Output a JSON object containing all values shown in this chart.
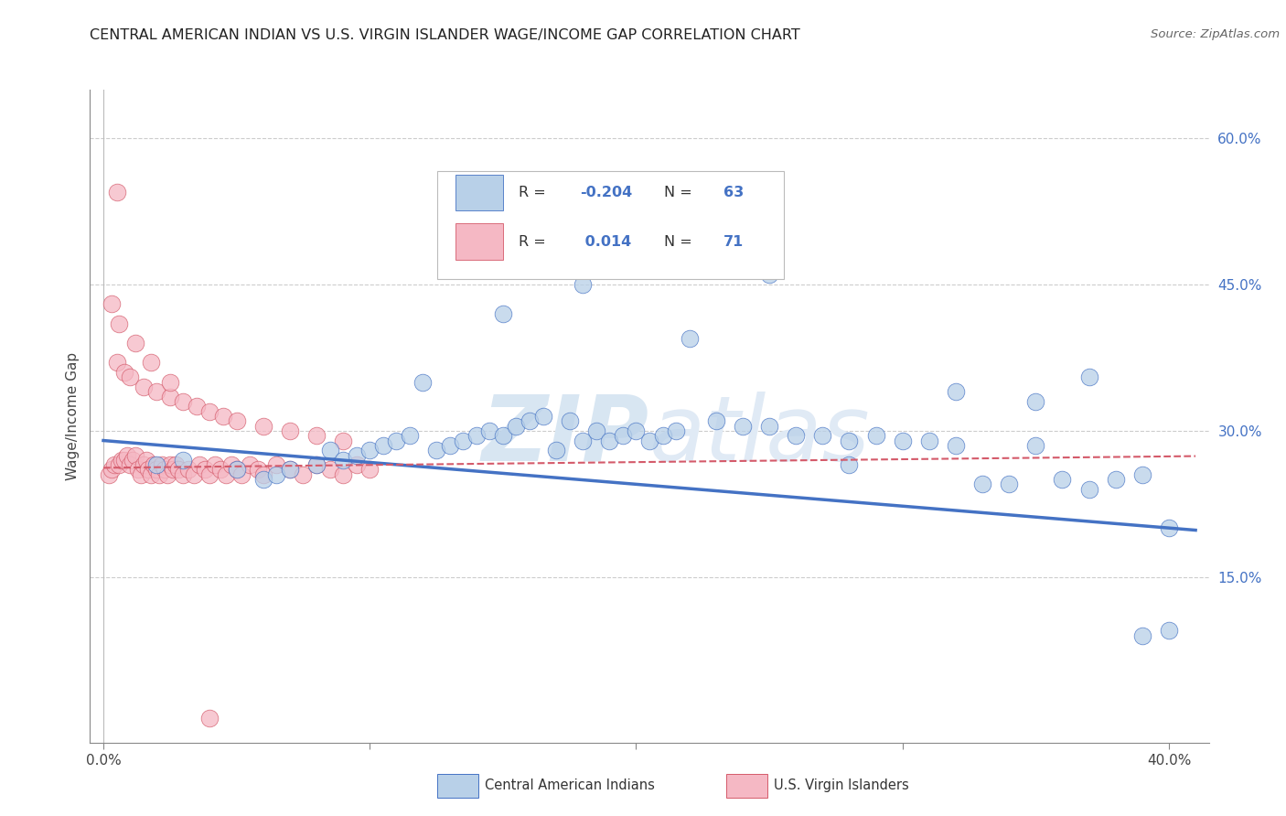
{
  "title": "CENTRAL AMERICAN INDIAN VS U.S. VIRGIN ISLANDER WAGE/INCOME GAP CORRELATION CHART",
  "source": "Source: ZipAtlas.com",
  "ylabel": "Wage/Income Gap",
  "xlim": [
    -0.005,
    0.415
  ],
  "ylim": [
    -0.02,
    0.65
  ],
  "x_ticks": [
    0.0,
    0.1,
    0.2,
    0.3,
    0.4
  ],
  "x_tick_labels": [
    "0.0%",
    "",
    "",
    "",
    "40.0%"
  ],
  "y_ticks_right": [
    0.15,
    0.3,
    0.45,
    0.6
  ],
  "y_tick_labels_right": [
    "15.0%",
    "30.0%",
    "45.0%",
    "60.0%"
  ],
  "color_blue": "#b8d0e8",
  "color_pink": "#f5b8c4",
  "line_color_blue": "#4472c4",
  "line_color_pink": "#d45a6a",
  "watermark": "ZIPatlas",
  "blue_scatter_x": [
    0.02,
    0.03,
    0.05,
    0.06,
    0.065,
    0.07,
    0.08,
    0.085,
    0.09,
    0.095,
    0.1,
    0.105,
    0.11,
    0.115,
    0.12,
    0.125,
    0.13,
    0.135,
    0.14,
    0.145,
    0.15,
    0.155,
    0.16,
    0.165,
    0.17,
    0.175,
    0.18,
    0.185,
    0.19,
    0.195,
    0.2,
    0.205,
    0.21,
    0.215,
    0.22,
    0.23,
    0.24,
    0.25,
    0.26,
    0.27,
    0.28,
    0.29,
    0.3,
    0.31,
    0.32,
    0.33,
    0.34,
    0.35,
    0.36,
    0.37,
    0.38,
    0.39,
    0.4,
    0.35,
    0.37,
    0.39,
    0.4,
    0.21,
    0.15,
    0.28,
    0.25,
    0.18,
    0.32
  ],
  "blue_scatter_y": [
    0.265,
    0.27,
    0.26,
    0.25,
    0.255,
    0.26,
    0.265,
    0.28,
    0.27,
    0.275,
    0.28,
    0.285,
    0.29,
    0.295,
    0.35,
    0.28,
    0.285,
    0.29,
    0.295,
    0.3,
    0.295,
    0.305,
    0.31,
    0.315,
    0.28,
    0.31,
    0.29,
    0.3,
    0.29,
    0.295,
    0.3,
    0.29,
    0.295,
    0.3,
    0.395,
    0.31,
    0.305,
    0.305,
    0.295,
    0.295,
    0.29,
    0.295,
    0.29,
    0.29,
    0.285,
    0.245,
    0.245,
    0.285,
    0.25,
    0.24,
    0.25,
    0.255,
    0.2,
    0.33,
    0.355,
    0.09,
    0.095,
    0.48,
    0.42,
    0.265,
    0.46,
    0.45,
    0.34
  ],
  "pink_scatter_x": [
    0.002,
    0.003,
    0.004,
    0.005,
    0.006,
    0.007,
    0.008,
    0.009,
    0.01,
    0.011,
    0.012,
    0.013,
    0.014,
    0.015,
    0.016,
    0.017,
    0.018,
    0.019,
    0.02,
    0.021,
    0.022,
    0.023,
    0.024,
    0.025,
    0.026,
    0.027,
    0.028,
    0.03,
    0.032,
    0.034,
    0.036,
    0.038,
    0.04,
    0.042,
    0.044,
    0.046,
    0.048,
    0.05,
    0.052,
    0.055,
    0.058,
    0.06,
    0.065,
    0.07,
    0.075,
    0.08,
    0.085,
    0.09,
    0.095,
    0.1,
    0.005,
    0.008,
    0.01,
    0.015,
    0.02,
    0.025,
    0.03,
    0.035,
    0.04,
    0.045,
    0.05,
    0.06,
    0.07,
    0.08,
    0.09,
    0.003,
    0.006,
    0.012,
    0.018,
    0.025,
    0.04
  ],
  "pink_scatter_y": [
    0.255,
    0.26,
    0.265,
    0.545,
    0.265,
    0.27,
    0.27,
    0.275,
    0.265,
    0.27,
    0.275,
    0.26,
    0.255,
    0.265,
    0.27,
    0.26,
    0.255,
    0.265,
    0.26,
    0.255,
    0.265,
    0.26,
    0.255,
    0.265,
    0.26,
    0.265,
    0.26,
    0.255,
    0.26,
    0.255,
    0.265,
    0.26,
    0.255,
    0.265,
    0.26,
    0.255,
    0.265,
    0.26,
    0.255,
    0.265,
    0.26,
    0.255,
    0.265,
    0.26,
    0.255,
    0.265,
    0.26,
    0.255,
    0.265,
    0.26,
    0.37,
    0.36,
    0.355,
    0.345,
    0.34,
    0.335,
    0.33,
    0.325,
    0.32,
    0.315,
    0.31,
    0.305,
    0.3,
    0.295,
    0.29,
    0.43,
    0.41,
    0.39,
    0.37,
    0.35,
    0.005
  ],
  "blue_line_x": [
    0.0,
    0.41
  ],
  "blue_line_y": [
    0.29,
    0.198
  ],
  "pink_line_x": [
    0.0,
    0.41
  ],
  "pink_line_y": [
    0.262,
    0.274
  ],
  "grid_color": "#cccccc",
  "bg_color": "#ffffff",
  "watermark_color": "#dce6f0",
  "label_color_blue": "#4472c4",
  "label_color_pink": "#d45a6a"
}
